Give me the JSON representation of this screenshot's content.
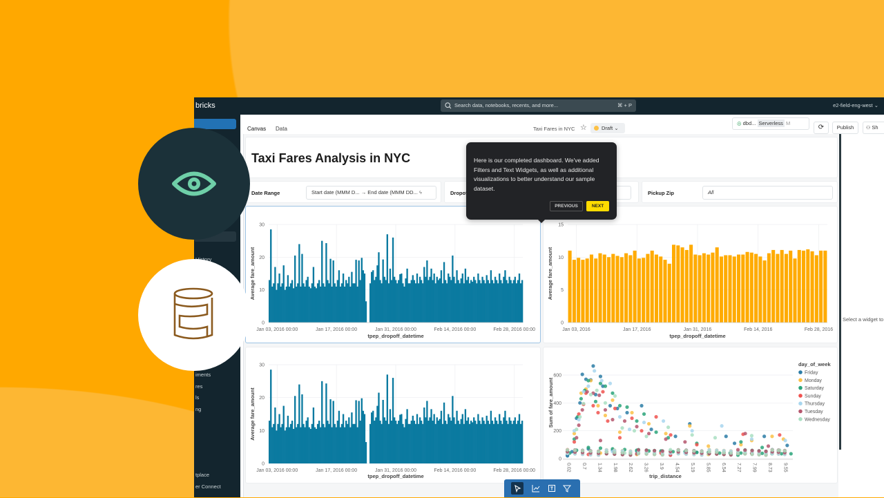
{
  "topbar": {
    "logo": "bricks",
    "search_placeholder": "Search data, notebooks, recents, and more...",
    "shortcut": "⌘ + P",
    "workspace": "e2-field-eng-west ⌄"
  },
  "sidebar": {
    "items": [
      {
        "label": "History"
      },
      {
        "label": "iments"
      },
      {
        "label": "res"
      },
      {
        "label": "ls"
      },
      {
        "label": "ng"
      },
      {
        "label": "tplace"
      },
      {
        "label": "er Connect"
      }
    ]
  },
  "toolbar": {
    "tabs": [
      {
        "label": "Canvas"
      },
      {
        "label": "Data"
      }
    ],
    "dashboard_name": "Taxi Fares in NYC",
    "status": "Draft ⌄",
    "warehouse": "dbd...",
    "warehouse_type": "Serverless",
    "warehouse_size": "M",
    "publish": "Publish",
    "share": "Sh"
  },
  "dashboard": {
    "title": "Taxi Fares Analysis in NYC",
    "filters": [
      {
        "label": "Date Range",
        "start": "Start date (MMM D...",
        "end": "End date (MMM DD..."
      },
      {
        "label": "Dropof"
      },
      {
        "label": "Pickup Zip",
        "value": "All"
      }
    ]
  },
  "right_panel": {
    "hint": "Select a widget to"
  },
  "tooltip": {
    "text": "Here is our completed dashboard. We've added Filters and Text Widgets, as well as additional visualizations to better understand our sample dataset.",
    "previous": "PREVIOUS",
    "next": "NEXT"
  },
  "icons": {
    "eye": "eye-icon",
    "database": "database-icon",
    "select": "cursor-icon",
    "chart": "chart-icon",
    "text": "text-widget-icon",
    "filter": "filter-icon"
  },
  "colors": {
    "blue_bars": "#0b7aa0",
    "orange_bars": "#FFAB00",
    "accent": "#2272b4",
    "next_button": "#FFDB00"
  },
  "chart_data": [
    {
      "type": "bar",
      "xlabel": "tpep_dropoff_datetime",
      "ylabel": "Average fare_amount",
      "ylim": [
        0,
        30
      ],
      "yticks": [
        0,
        10,
        20,
        30
      ],
      "xrange": [
        "2016-01-01",
        "2016-03-01"
      ],
      "xticks": [
        "Jan 03, 2016 00:00",
        "Jan 17, 2016 00:00",
        "Jan 31, 2016 00:00",
        "Feb 14, 2016 00:00",
        "Feb 28, 2016 00:00"
      ],
      "values": [
        13,
        28.5,
        11,
        12,
        17,
        10,
        12,
        15,
        11,
        12,
        17.5,
        10,
        11,
        14.5,
        11,
        12,
        13,
        10.5,
        20.5,
        11,
        12,
        24,
        11,
        21,
        12,
        11,
        13,
        14,
        11,
        10.5,
        12,
        17,
        11,
        10.5,
        12,
        13,
        11,
        25,
        12,
        11,
        24.3,
        13,
        12,
        19.5,
        11,
        19,
        12,
        11,
        13,
        16,
        11,
        12,
        15,
        11,
        13,
        12,
        14,
        11,
        15.5,
        12,
        12,
        19.2,
        11,
        19,
        13,
        19.8,
        16,
        15,
        6.5,
        0,
        0,
        12,
        15.5,
        16,
        13,
        14,
        17.5,
        21.5,
        13,
        12,
        19.3,
        14,
        13,
        27,
        12,
        16.5,
        13,
        26,
        14,
        13,
        12,
        13,
        14.8,
        15,
        12,
        11,
        13.5,
        16.5,
        12,
        12,
        13,
        14.5,
        13,
        12,
        15,
        12,
        14,
        13,
        12,
        17,
        14,
        19,
        13,
        14,
        16.5,
        13,
        15,
        12,
        14,
        13,
        13.5,
        16,
        12,
        18.5,
        13,
        12,
        15,
        14,
        13,
        20.5,
        14,
        12,
        16,
        13,
        12,
        13.5,
        15,
        12,
        16.5,
        13,
        14,
        12,
        13,
        12.5,
        14,
        13,
        12,
        15,
        13,
        12,
        14,
        13,
        12,
        14.5,
        13,
        12,
        16,
        13,
        12,
        14,
        13,
        12,
        15,
        13,
        12,
        14,
        16,
        13,
        12,
        14,
        13,
        12,
        13,
        14,
        12,
        13,
        15,
        12,
        13
      ]
    },
    {
      "type": "bar",
      "xlabel": "tpep_dropoff_datetime",
      "ylabel": "Average fare_amount",
      "ylim": [
        0,
        15
      ],
      "yticks": [
        0,
        5,
        10,
        15
      ],
      "xrange": [
        "2016-01-01",
        "2016-03-01"
      ],
      "xticks": [
        "Jan 03, 2016",
        "Jan 17, 2016",
        "Jan 31, 2016",
        "Feb 14, 2016",
        "Feb 28, 2016"
      ],
      "values": [
        11.0,
        9.6,
        9.9,
        9.6,
        9.8,
        10.4,
        9.8,
        10.6,
        10.4,
        10.0,
        10.5,
        10.2,
        10.0,
        10.6,
        10.3,
        11.0,
        9.8,
        9.9,
        10.5,
        11.0,
        10.4,
        10.1,
        9.6,
        9.0,
        11.9,
        11.8,
        11.5,
        11.1,
        11.9,
        10.4,
        10.3,
        10.6,
        10.4,
        10.7,
        11.5,
        10.1,
        10.3,
        10.3,
        10.1,
        10.4,
        10.4,
        10.8,
        10.7,
        10.5,
        10.1,
        9.5,
        10.6,
        11.1,
        10.5,
        11.1,
        10.5,
        11.0,
        9.8,
        11.1,
        11.0,
        11.2,
        10.9,
        10.3,
        11.0,
        11.0
      ]
    },
    {
      "type": "scatter",
      "xlabel": "trip_distance",
      "ylabel": "Sum of fare_amount",
      "ylim": [
        0,
        680
      ],
      "yticks": [
        0,
        200,
        400,
        600
      ],
      "xticks": [
        0.02,
        0.7,
        1.34,
        1.98,
        2.62,
        3.26,
        3.9,
        4.54,
        5.19,
        5.85,
        6.54,
        7.27,
        7.99,
        8.73,
        9.55
      ],
      "legend_title": "day_of_week",
      "legend_position": "right",
      "series": [
        {
          "name": "Friday",
          "color": "#2b7ca6",
          "points": [
            [
              0.1,
              20
            ],
            [
              0.3,
              50
            ],
            [
              0.5,
              290
            ],
            [
              0.65,
              400
            ],
            [
              0.75,
              605
            ],
            [
              0.9,
              570
            ],
            [
              1.1,
              565
            ],
            [
              1.2,
              665
            ],
            [
              1.3,
              460
            ],
            [
              1.5,
              590
            ],
            [
              1.6,
              520
            ],
            [
              1.9,
              380
            ],
            [
              2.2,
              360
            ],
            [
              2.6,
              330
            ],
            [
              3.2,
              380
            ],
            [
              3.6,
              210
            ],
            [
              4.6,
              160
            ],
            [
              5.2,
              250
            ],
            [
              6.8,
              160
            ],
            [
              7.2,
              110
            ],
            [
              8.6,
              160
            ],
            [
              9.8,
              95
            ],
            [
              1.0,
              70
            ],
            [
              2.0,
              60
            ],
            [
              3.0,
              55
            ],
            [
              4.0,
              50
            ],
            [
              5.5,
              45
            ],
            [
              7.0,
              40
            ],
            [
              9.0,
              40
            ]
          ]
        },
        {
          "name": "Monday",
          "color": "#fcc146",
          "points": [
            [
              0.4,
              180
            ],
            [
              0.7,
              470
            ],
            [
              0.9,
              500
            ],
            [
              1.1,
              560
            ],
            [
              1.4,
              380
            ],
            [
              1.7,
              310
            ],
            [
              2.0,
              420
            ],
            [
              2.3,
              190
            ],
            [
              2.8,
              330
            ],
            [
              3.5,
              250
            ],
            [
              4.2,
              180
            ],
            [
              5.2,
              235
            ],
            [
              6.0,
              90
            ],
            [
              7.5,
              100
            ],
            [
              8.0,
              130
            ],
            [
              9.0,
              160
            ],
            [
              9.6,
              140
            ],
            [
              1.5,
              40
            ],
            [
              3.0,
              30
            ],
            [
              6.0,
              30
            ]
          ]
        },
        {
          "name": "Saturday",
          "color": "#2ca57a",
          "points": [
            [
              0.2,
              40
            ],
            [
              0.4,
              140
            ],
            [
              0.55,
              300
            ],
            [
              0.7,
              430
            ],
            [
              0.85,
              490
            ],
            [
              1.0,
              560
            ],
            [
              1.3,
              410
            ],
            [
              1.5,
              540
            ],
            [
              1.7,
              520
            ],
            [
              2.0,
              470
            ],
            [
              2.3,
              380
            ],
            [
              2.6,
              370
            ],
            [
              3.0,
              270
            ],
            [
              3.3,
              320
            ],
            [
              3.8,
              190
            ],
            [
              4.3,
              150
            ],
            [
              5.5,
              110
            ],
            [
              7.5,
              120
            ],
            [
              8.5,
              80
            ],
            [
              0.5,
              60
            ],
            [
              1.0,
              80
            ],
            [
              1.5,
              75
            ],
            [
              2.0,
              70
            ],
            [
              2.5,
              65
            ],
            [
              3.0,
              60
            ],
            [
              3.5,
              55
            ],
            [
              4.0,
              55
            ],
            [
              4.5,
              50
            ],
            [
              5.0,
              50
            ],
            [
              5.5,
              45
            ],
            [
              6.0,
              45
            ],
            [
              6.5,
              40
            ],
            [
              7.0,
              40
            ],
            [
              7.5,
              40
            ],
            [
              8.0,
              38
            ],
            [
              8.5,
              38
            ],
            [
              9.0,
              35
            ],
            [
              9.5,
              35
            ],
            [
              10.0,
              35
            ]
          ]
        },
        {
          "name": "Sunday",
          "color": "#f0524f",
          "points": [
            [
              0.4,
              120
            ],
            [
              0.6,
              320
            ],
            [
              0.8,
              390
            ],
            [
              0.9,
              470
            ],
            [
              1.2,
              380
            ],
            [
              1.4,
              330
            ],
            [
              1.6,
              480
            ],
            [
              1.8,
              270
            ],
            [
              2.1,
              360
            ],
            [
              2.3,
              150
            ],
            [
              2.8,
              290
            ],
            [
              3.2,
              200
            ],
            [
              3.8,
              300
            ],
            [
              4.4,
              170
            ],
            [
              5.5,
              100
            ],
            [
              7.6,
              175
            ],
            [
              9.4,
              170
            ],
            [
              1.0,
              30
            ],
            [
              4.0,
              40
            ],
            [
              8.0,
              40
            ]
          ]
        },
        {
          "name": "Thursday",
          "color": "#a8d6ee",
          "points": [
            [
              0.4,
              200
            ],
            [
              0.6,
              280
            ],
            [
              0.8,
              480
            ],
            [
              1.0,
              520
            ],
            [
              1.25,
              630
            ],
            [
              1.55,
              560
            ],
            [
              1.9,
              540
            ],
            [
              2.3,
              300
            ],
            [
              2.7,
              210
            ],
            [
              3.3,
              260
            ],
            [
              4.1,
              270
            ],
            [
              5.3,
              200
            ],
            [
              6.6,
              235
            ],
            [
              8.0,
              140
            ],
            [
              9.7,
              130
            ],
            [
              2.0,
              50
            ],
            [
              5.0,
              40
            ]
          ]
        },
        {
          "name": "Tuesday",
          "color": "#b5566d",
          "points": [
            [
              0.5,
              150
            ],
            [
              0.6,
              240
            ],
            [
              0.75,
              350
            ],
            [
              0.95,
              480
            ],
            [
              1.2,
              470
            ],
            [
              1.45,
              455
            ],
            [
              1.7,
              350
            ],
            [
              2.0,
              280
            ],
            [
              2.5,
              270
            ],
            [
              3.0,
              230
            ],
            [
              3.5,
              180
            ],
            [
              4.2,
              140
            ],
            [
              5.0,
              120
            ],
            [
              7.7,
              180
            ],
            [
              8.8,
              90
            ],
            [
              1.5,
              130
            ],
            [
              3.0,
              35
            ]
          ]
        },
        {
          "name": "Wednesday",
          "color": "#a9dfc2",
          "points": [
            [
              0.5,
              210
            ],
            [
              0.65,
              300
            ],
            [
              0.8,
              395
            ],
            [
              1.1,
              460
            ],
            [
              1.35,
              490
            ],
            [
              1.7,
              400
            ],
            [
              2.1,
              450
            ],
            [
              2.4,
              220
            ],
            [
              2.9,
              200
            ],
            [
              3.4,
              160
            ],
            [
              4.3,
              225
            ],
            [
              5.3,
              170
            ],
            [
              6.3,
              150
            ],
            [
              8.0,
              165
            ],
            [
              9.4,
              60
            ],
            [
              2.5,
              40
            ],
            [
              6.0,
              35
            ]
          ]
        }
      ]
    }
  ]
}
